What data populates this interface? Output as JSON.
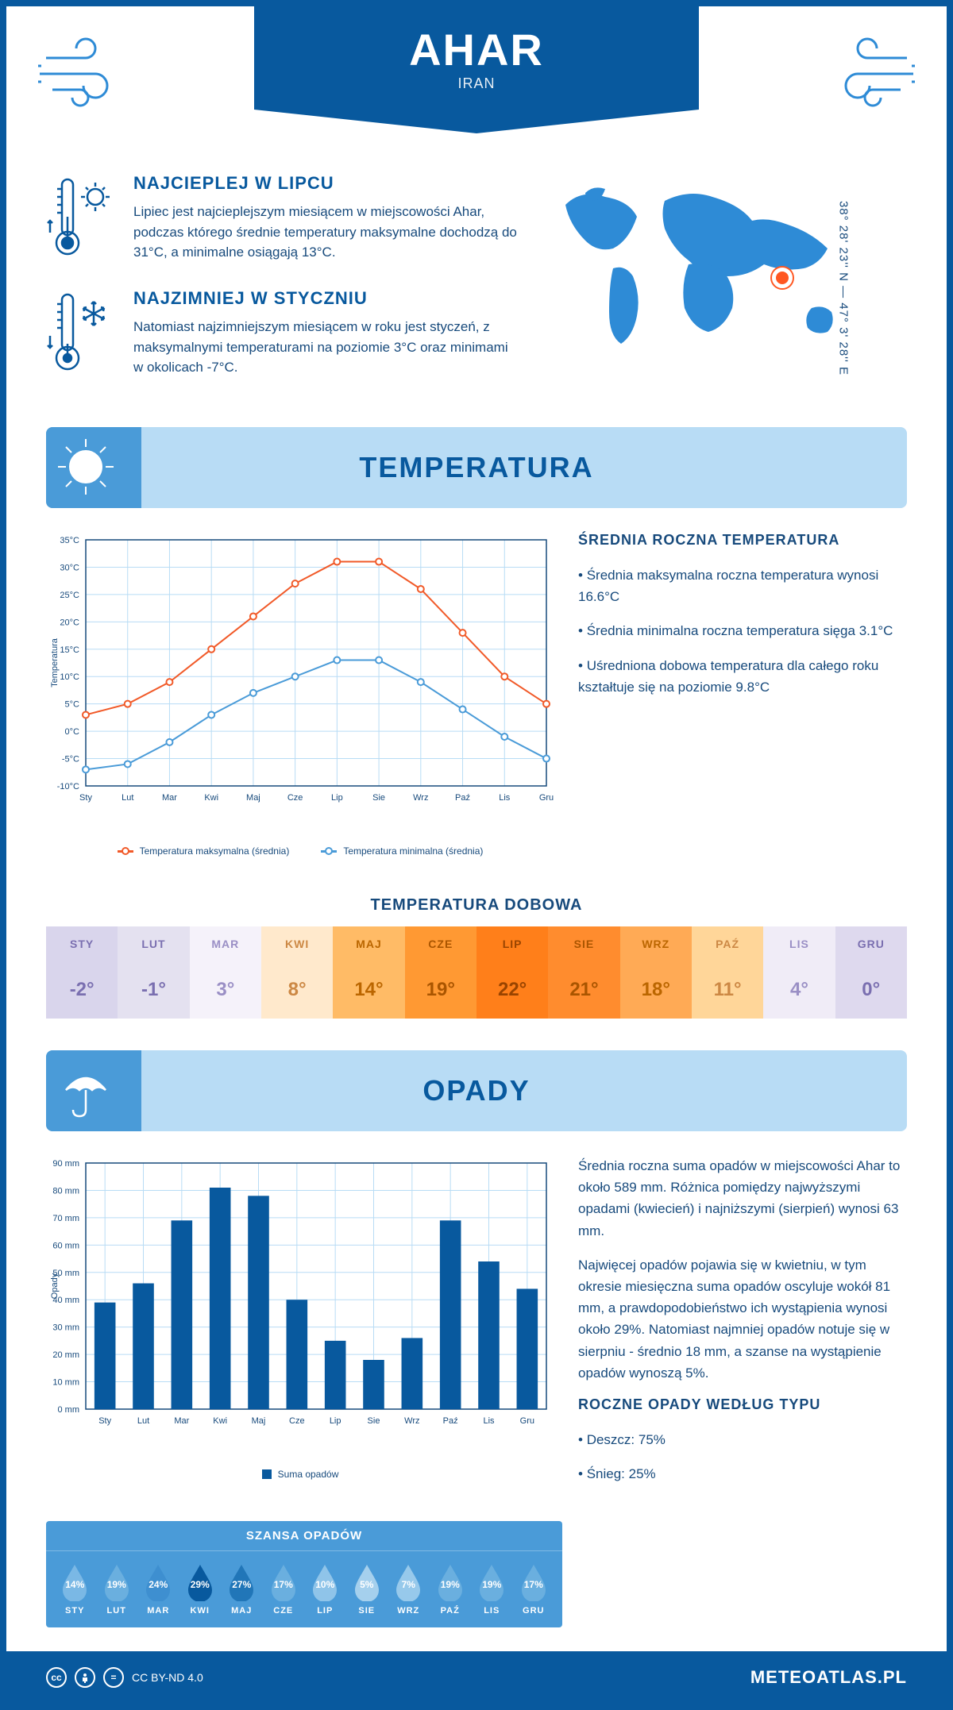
{
  "header": {
    "city": "AHAR",
    "country": "IRAN",
    "coords": "38° 28' 23'' N — 47° 3' 28'' E",
    "map_marker": {
      "left_pct": 63,
      "top_pct": 41
    }
  },
  "info_blocks": {
    "warm": {
      "title": "NAJCIEPLEJ W LIPCU",
      "text": "Lipiec jest najcieplejszym miesiącem w miejscowości Ahar, podczas którego średnie temperatury maksymalne dochodzą do 31°C, a minimalne osiągają 13°C."
    },
    "cold": {
      "title": "NAJZIMNIEJ W STYCZNIU",
      "text": "Natomiast najzimniejszym miesiącem w roku jest styczeń, z maksymalnymi temperaturami na poziomie 3°C oraz minimami w okolicach -7°C."
    }
  },
  "temp_section": {
    "title": "TEMPERATURA",
    "summary": {
      "heading": "ŚREDNIA ROCZNA TEMPERATURA",
      "bullets": [
        "Średnia maksymalna roczna temperatura wynosi 16.6°C",
        "Średnia minimalna roczna temperatura sięga 3.1°C",
        "Uśredniona dobowa temperatura dla całego roku kształtuje się na poziomie 9.8°C"
      ]
    },
    "chart": {
      "type": "line",
      "months": [
        "Sty",
        "Lut",
        "Mar",
        "Kwi",
        "Maj",
        "Cze",
        "Lip",
        "Sie",
        "Wrz",
        "Paź",
        "Lis",
        "Gru"
      ],
      "series": {
        "max": {
          "label": "Temperatura maksymalna (średnia)",
          "color": "#f15a29",
          "values": [
            3,
            5,
            9,
            15,
            21,
            27,
            31,
            31,
            26,
            18,
            10,
            5
          ]
        },
        "min": {
          "label": "Temperatura minimalna (średnia)",
          "color": "#4a9bd8",
          "values": [
            -7,
            -6,
            -2,
            3,
            7,
            10,
            13,
            13,
            9,
            4,
            -1,
            -5
          ]
        }
      },
      "ylim": [
        -10,
        35
      ],
      "ytick_step": 5,
      "ylabel": "Temperatura",
      "grid_color": "#b8dcf5",
      "background_color": "#ffffff"
    },
    "daily": {
      "title": "TEMPERATURA DOBOWA",
      "months": [
        "STY",
        "LUT",
        "MAR",
        "KWI",
        "MAJ",
        "CZE",
        "LIP",
        "SIE",
        "WRZ",
        "PAŹ",
        "LIS",
        "GRU"
      ],
      "values": [
        "-2°",
        "-1°",
        "3°",
        "8°",
        "14°",
        "19°",
        "22°",
        "21°",
        "18°",
        "11°",
        "4°",
        "0°"
      ],
      "colors": [
        "#d9d5ec",
        "#e4e1f0",
        "#f5f2fa",
        "#ffe9cc",
        "#ffbb66",
        "#ff9933",
        "#ff7f1a",
        "#ff8c2e",
        "#ffaa55",
        "#ffd699",
        "#f0ecf7",
        "#ded9ee"
      ],
      "text_colors": [
        "#7a6fb0",
        "#7a6fb0",
        "#9a8fc5",
        "#cc8844",
        "#bb6600",
        "#aa5500",
        "#994400",
        "#aa5500",
        "#bb6600",
        "#cc8844",
        "#9a8fc5",
        "#7a6fb0"
      ]
    }
  },
  "precip_section": {
    "title": "OPADY",
    "chart": {
      "type": "bar",
      "months": [
        "Sty",
        "Lut",
        "Mar",
        "Kwi",
        "Maj",
        "Cze",
        "Lip",
        "Sie",
        "Wrz",
        "Paź",
        "Lis",
        "Gru"
      ],
      "values": [
        39,
        46,
        69,
        81,
        78,
        40,
        25,
        18,
        26,
        69,
        54,
        44
      ],
      "ylim": [
        0,
        90
      ],
      "ytick_step": 10,
      "ylabel": "Opady",
      "bar_color": "#08599e",
      "grid_color": "#b8dcf5",
      "legend_label": "Suma opadów"
    },
    "text": {
      "p1": "Średnia roczna suma opadów w miejscowości Ahar to około 589 mm. Różnica pomiędzy najwyższymi opadami (kwiecień) i najniższymi (sierpień) wynosi 63 mm.",
      "p2": "Najwięcej opadów pojawia się w kwietniu, w tym okresie miesięczna suma opadów oscyluje wokół 81 mm, a prawdopodobieństwo ich wystąpienia wynosi około 29%. Natomiast najmniej opadów notuje się w sierpniu - średnio 18 mm, a szanse na wystąpienie opadów wynoszą 5%.",
      "type_heading": "ROCZNE OPADY WEDŁUG TYPU",
      "type_lines": [
        "Deszcz: 75%",
        "Śnieg: 25%"
      ]
    },
    "chance": {
      "title": "SZANSA OPADÓW",
      "months": [
        "STY",
        "LUT",
        "MAR",
        "KWI",
        "MAJ",
        "CZE",
        "LIP",
        "SIE",
        "WRZ",
        "PAŹ",
        "LIS",
        "GRU"
      ],
      "pct": [
        "14%",
        "19%",
        "24%",
        "29%",
        "27%",
        "17%",
        "10%",
        "5%",
        "7%",
        "19%",
        "19%",
        "17%"
      ],
      "shades": [
        "#7ab8e5",
        "#6aafdf",
        "#3e8fd0",
        "#08599e",
        "#2176b8",
        "#6aafdf",
        "#8fc4e9",
        "#a5d0ed",
        "#97c9eb",
        "#6aafdf",
        "#6aafdf",
        "#6aafdf"
      ]
    }
  },
  "footer": {
    "license": "CC BY-ND 4.0",
    "site": "METEOATLAS.PL"
  },
  "colors": {
    "primary": "#08599e",
    "light_blue": "#b8dcf5",
    "mid_blue": "#4a9bd8"
  }
}
